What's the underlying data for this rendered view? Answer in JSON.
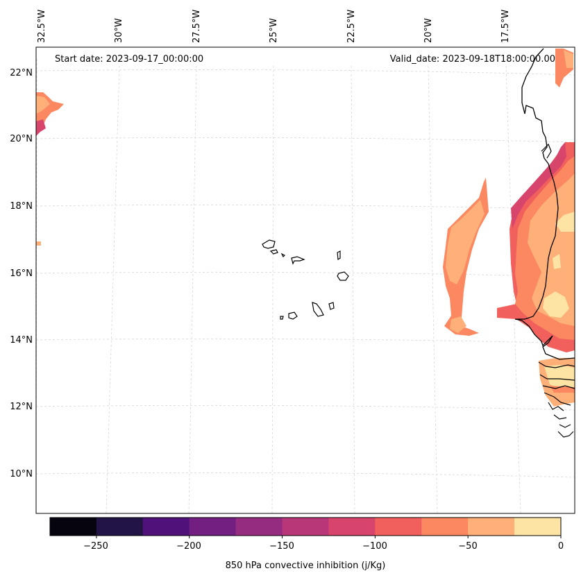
{
  "map": {
    "start_date": "Start date: 2023-09-17_00:00:00",
    "valid_date": "Valid_date: 2023-09-18T18:00:00.00",
    "lon_labels": [
      "32.5°W",
      "30°W",
      "27.5°W",
      "25°W",
      "22.5°W",
      "20°W",
      "17.5°W"
    ],
    "lat_labels": [
      "22°N",
      "20°N",
      "18°N",
      "16°N",
      "14°N",
      "12°N",
      "10°N"
    ],
    "extent": {
      "lon_min": -32.5,
      "lon_max": -15.5,
      "lat_min": 9,
      "lat_max": 22.7
    },
    "gridlines": "dashed light grey"
  },
  "colorbar": {
    "label": "850 hPa convective inhibition (j/Kg)",
    "ticks": [
      "−250",
      "−200",
      "−150",
      "−100",
      "−50",
      "0"
    ],
    "levels": [
      -275,
      -250,
      -225,
      -200,
      -175,
      -150,
      -125,
      -100,
      -75,
      -50,
      -25,
      0
    ],
    "colors": [
      "#06050f",
      "#221546",
      "#4f127b",
      "#721f81",
      "#962c7f",
      "#b73779",
      "#d8456c",
      "#f1605d",
      "#fb8861",
      "#feb078",
      "#fde3a4"
    ]
  },
  "colors": {
    "cin_-150_-125": "#b73779",
    "cin_-125_-100": "#d8456c",
    "cin_-100_-75": "#f1605d",
    "cin_-75_-50": "#fb8861",
    "cin_-50_-25": "#feb078",
    "cin_-25_0": "#fde3a4",
    "coastline": "#000000"
  }
}
